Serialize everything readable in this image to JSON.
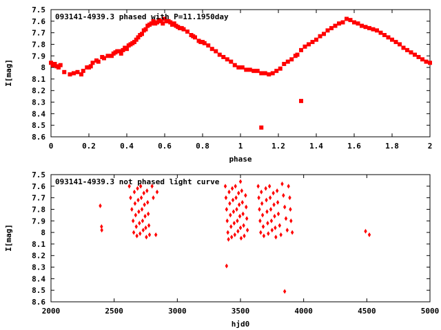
{
  "chart_data": [
    {
      "type": "scatter",
      "title": "093141-4939.3 phased with P=11.1950day",
      "xlabel": "phase",
      "ylabel": "I[mag]",
      "xlim": [
        0,
        2
      ],
      "ylim": [
        8.6,
        7.5
      ],
      "y_inverted": true,
      "xticks": [
        "0",
        "0.2",
        "0.4",
        "0.6",
        "0.8",
        "1",
        "1.2",
        "1.4",
        "1.6",
        "1.8",
        "2"
      ],
      "yticks": [
        "7.5",
        "7.6",
        "7.7",
        "7.8",
        "7.9",
        "8",
        "8.1",
        "8.2",
        "8.3",
        "8.4",
        "8.5",
        "8.6"
      ],
      "marker": "filled-square",
      "color": "#ff0000",
      "points": [
        [
          0.0,
          7.96
        ],
        [
          0.01,
          7.98
        ],
        [
          0.02,
          7.97
        ],
        [
          0.03,
          7.99
        ],
        [
          0.04,
          8.0
        ],
        [
          0.05,
          7.98
        ],
        [
          0.07,
          8.04
        ],
        [
          0.1,
          8.06
        ],
        [
          0.12,
          8.05
        ],
        [
          0.14,
          8.04
        ],
        [
          0.16,
          8.06
        ],
        [
          0.17,
          8.03
        ],
        [
          0.19,
          8.0
        ],
        [
          0.2,
          8.0
        ],
        [
          0.21,
          7.99
        ],
        [
          0.22,
          7.96
        ],
        [
          0.24,
          7.94
        ],
        [
          0.25,
          7.95
        ],
        [
          0.27,
          7.91
        ],
        [
          0.28,
          7.92
        ],
        [
          0.3,
          7.9
        ],
        [
          0.32,
          7.9
        ],
        [
          0.33,
          7.88
        ],
        [
          0.34,
          7.87
        ],
        [
          0.35,
          7.86
        ],
        [
          0.36,
          7.86
        ],
        [
          0.37,
          7.88
        ],
        [
          0.38,
          7.85
        ],
        [
          0.39,
          7.83
        ],
        [
          0.4,
          7.84
        ],
        [
          0.41,
          7.81
        ],
        [
          0.42,
          7.8
        ],
        [
          0.43,
          7.79
        ],
        [
          0.44,
          7.78
        ],
        [
          0.45,
          7.76
        ],
        [
          0.46,
          7.74
        ],
        [
          0.47,
          7.72
        ],
        [
          0.48,
          7.71
        ],
        [
          0.49,
          7.68
        ],
        [
          0.5,
          7.67
        ],
        [
          0.51,
          7.64
        ],
        [
          0.52,
          7.63
        ],
        [
          0.53,
          7.62
        ],
        [
          0.54,
          7.6
        ],
        [
          0.55,
          7.62
        ],
        [
          0.56,
          7.61
        ],
        [
          0.57,
          7.59
        ],
        [
          0.58,
          7.6
        ],
        [
          0.59,
          7.62
        ],
        [
          0.6,
          7.58
        ],
        [
          0.61,
          7.6
        ],
        [
          0.62,
          7.6
        ],
        [
          0.63,
          7.61
        ],
        [
          0.64,
          7.63
        ],
        [
          0.65,
          7.62
        ],
        [
          0.66,
          7.64
        ],
        [
          0.67,
          7.65
        ],
        [
          0.68,
          7.66
        ],
        [
          0.69,
          7.66
        ],
        [
          0.7,
          7.67
        ],
        [
          0.72,
          7.69
        ],
        [
          0.74,
          7.72
        ],
        [
          0.75,
          7.73
        ],
        [
          0.76,
          7.74
        ],
        [
          0.78,
          7.77
        ],
        [
          0.79,
          7.78
        ],
        [
          0.8,
          7.78
        ],
        [
          0.81,
          7.79
        ],
        [
          0.83,
          7.81
        ],
        [
          0.85,
          7.84
        ],
        [
          0.87,
          7.86
        ],
        [
          0.89,
          7.89
        ],
        [
          0.91,
          7.91
        ],
        [
          0.93,
          7.93
        ],
        [
          0.95,
          7.95
        ],
        [
          0.97,
          7.98
        ],
        [
          0.99,
          8.0
        ],
        [
          1.01,
          8.0
        ],
        [
          1.03,
          8.02
        ],
        [
          1.05,
          8.02
        ],
        [
          1.07,
          8.03
        ],
        [
          1.09,
          8.03
        ],
        [
          1.11,
          8.05
        ],
        [
          1.13,
          8.05
        ],
        [
          1.15,
          8.06
        ],
        [
          1.17,
          8.05
        ],
        [
          1.19,
          8.03
        ],
        [
          1.21,
          8.01
        ],
        [
          1.23,
          7.97
        ],
        [
          1.25,
          7.95
        ],
        [
          1.27,
          7.93
        ],
        [
          1.29,
          7.9
        ],
        [
          1.3,
          7.89
        ],
        [
          1.32,
          7.85
        ],
        [
          1.34,
          7.82
        ],
        [
          1.36,
          7.8
        ],
        [
          1.38,
          7.78
        ],
        [
          1.4,
          7.76
        ],
        [
          1.42,
          7.73
        ],
        [
          1.44,
          7.71
        ],
        [
          1.46,
          7.68
        ],
        [
          1.48,
          7.66
        ],
        [
          1.5,
          7.64
        ],
        [
          1.52,
          7.62
        ],
        [
          1.54,
          7.61
        ],
        [
          1.56,
          7.58
        ],
        [
          1.58,
          7.59
        ],
        [
          1.6,
          7.61
        ],
        [
          1.62,
          7.62
        ],
        [
          1.64,
          7.64
        ],
        [
          1.66,
          7.65
        ],
        [
          1.68,
          7.66
        ],
        [
          1.7,
          7.67
        ],
        [
          1.72,
          7.68
        ],
        [
          1.74,
          7.7
        ],
        [
          1.76,
          7.72
        ],
        [
          1.78,
          7.74
        ],
        [
          1.8,
          7.76
        ],
        [
          1.82,
          7.78
        ],
        [
          1.84,
          7.8
        ],
        [
          1.86,
          7.83
        ],
        [
          1.88,
          7.85
        ],
        [
          1.9,
          7.87
        ],
        [
          1.92,
          7.89
        ],
        [
          1.94,
          7.91
        ],
        [
          1.96,
          7.93
        ],
        [
          1.98,
          7.95
        ],
        [
          2.0,
          7.96
        ],
        [
          1.32,
          8.29
        ],
        [
          1.11,
          8.52
        ]
      ]
    },
    {
      "type": "scatter",
      "title": "093141-4939.3 not phased light curve",
      "xlabel": "hjd0",
      "ylabel": "I[mag]",
      "xlim": [
        2000,
        5000
      ],
      "ylim": [
        8.6,
        7.5
      ],
      "y_inverted": true,
      "xticks": [
        "2000",
        "2500",
        "3000",
        "3500",
        "4000",
        "4500",
        "5000"
      ],
      "yticks": [
        "7.5",
        "7.6",
        "7.7",
        "7.8",
        "7.9",
        "8",
        "8.1",
        "8.2",
        "8.3",
        "8.4",
        "8.5",
        "8.6"
      ],
      "marker": "filled-diamond",
      "color": "#ff0000",
      "points": [
        [
          2390,
          7.77
        ],
        [
          2400,
          7.95
        ],
        [
          2402,
          7.98
        ],
        [
          2620,
          7.6
        ],
        [
          2630,
          7.7
        ],
        [
          2640,
          7.8
        ],
        [
          2650,
          7.9
        ],
        [
          2655,
          8.0
        ],
        [
          2660,
          7.65
        ],
        [
          2665,
          7.75
        ],
        [
          2670,
          7.85
        ],
        [
          2675,
          7.95
        ],
        [
          2680,
          8.03
        ],
        [
          2685,
          7.62
        ],
        [
          2690,
          7.72
        ],
        [
          2695,
          7.82
        ],
        [
          2700,
          7.92
        ],
        [
          2705,
          8.01
        ],
        [
          2710,
          7.6
        ],
        [
          2715,
          7.7
        ],
        [
          2720,
          7.8
        ],
        [
          2725,
          7.9
        ],
        [
          2730,
          7.98
        ],
        [
          2735,
          7.66
        ],
        [
          2740,
          7.76
        ],
        [
          2745,
          7.86
        ],
        [
          2750,
          7.96
        ],
        [
          2755,
          8.04
        ],
        [
          2760,
          7.64
        ],
        [
          2765,
          7.74
        ],
        [
          2770,
          7.84
        ],
        [
          2775,
          7.94
        ],
        [
          2780,
          8.02
        ],
        [
          2800,
          7.6
        ],
        [
          2810,
          7.7
        ],
        [
          2830,
          8.02
        ],
        [
          2840,
          7.65
        ],
        [
          3380,
          7.6
        ],
        [
          3385,
          7.7
        ],
        [
          3390,
          7.8
        ],
        [
          3395,
          7.9
        ],
        [
          3400,
          8.0
        ],
        [
          3405,
          8.06
        ],
        [
          3410,
          7.65
        ],
        [
          3415,
          7.75
        ],
        [
          3420,
          7.85
        ],
        [
          3425,
          7.95
        ],
        [
          3430,
          8.04
        ],
        [
          3435,
          7.62
        ],
        [
          3440,
          7.72
        ],
        [
          3445,
          7.82
        ],
        [
          3450,
          7.92
        ],
        [
          3455,
          8.02
        ],
        [
          3460,
          7.6
        ],
        [
          3465,
          7.7
        ],
        [
          3470,
          7.8
        ],
        [
          3475,
          7.9
        ],
        [
          3480,
          7.99
        ],
        [
          3485,
          7.66
        ],
        [
          3490,
          7.76
        ],
        [
          3495,
          7.86
        ],
        [
          3500,
          7.96
        ],
        [
          3505,
          8.05
        ],
        [
          3510,
          7.64
        ],
        [
          3515,
          7.74
        ],
        [
          3520,
          7.84
        ],
        [
          3525,
          7.94
        ],
        [
          3530,
          8.03
        ],
        [
          3540,
          7.68
        ],
        [
          3545,
          7.78
        ],
        [
          3550,
          7.88
        ],
        [
          3555,
          7.98
        ],
        [
          3500,
          7.56
        ],
        [
          3390,
          8.29
        ],
        [
          3640,
          7.6
        ],
        [
          3645,
          7.7
        ],
        [
          3650,
          7.8
        ],
        [
          3655,
          7.9
        ],
        [
          3660,
          8.0
        ],
        [
          3665,
          7.65
        ],
        [
          3670,
          7.75
        ],
        [
          3675,
          7.85
        ],
        [
          3680,
          7.95
        ],
        [
          3685,
          8.03
        ],
        [
          3700,
          7.62
        ],
        [
          3705,
          7.72
        ],
        [
          3710,
          7.82
        ],
        [
          3715,
          7.92
        ],
        [
          3720,
          8.01
        ],
        [
          3730,
          7.6
        ],
        [
          3735,
          7.7
        ],
        [
          3740,
          7.8
        ],
        [
          3745,
          7.9
        ],
        [
          3750,
          7.98
        ],
        [
          3760,
          7.66
        ],
        [
          3765,
          7.76
        ],
        [
          3770,
          7.86
        ],
        [
          3775,
          7.96
        ],
        [
          3780,
          8.04
        ],
        [
          3790,
          7.64
        ],
        [
          3795,
          7.74
        ],
        [
          3800,
          7.84
        ],
        [
          3810,
          7.94
        ],
        [
          3820,
          8.02
        ],
        [
          3830,
          7.58
        ],
        [
          3840,
          7.68
        ],
        [
          3850,
          7.78
        ],
        [
          3860,
          7.88
        ],
        [
          3870,
          7.98
        ],
        [
          3880,
          7.6
        ],
        [
          3890,
          7.7
        ],
        [
          3895,
          7.8
        ],
        [
          3900,
          7.9
        ],
        [
          3910,
          8.0
        ],
        [
          3850,
          8.51
        ],
        [
          4490,
          7.99
        ],
        [
          4520,
          8.02
        ]
      ]
    }
  ]
}
